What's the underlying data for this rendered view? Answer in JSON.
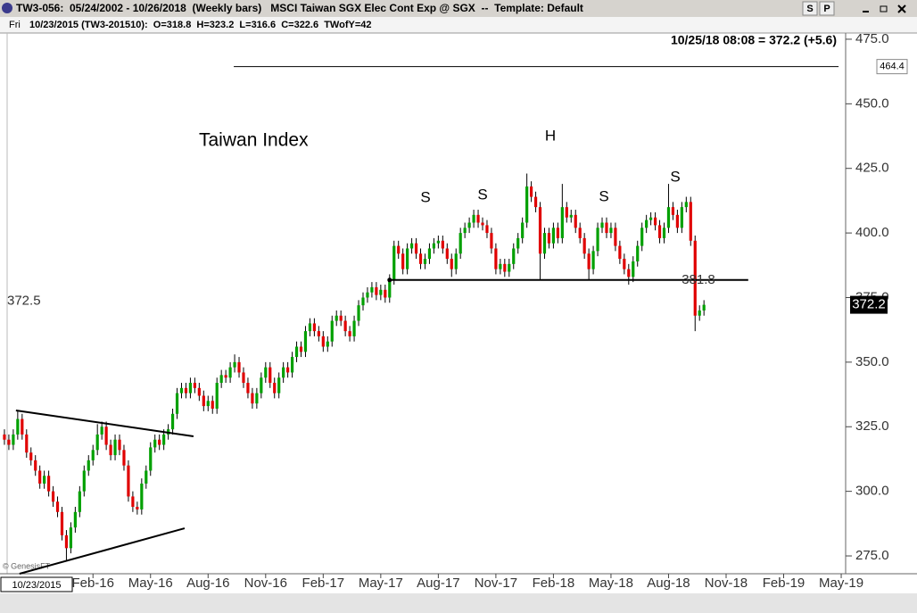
{
  "window": {
    "title": "TW3-056:  05/24/2002 - 10/26/2018  (Weekly bars)   MSCI Taiwan SGX Elec Cont Exp @ SGX  --  Template: Default",
    "buttons": [
      "S",
      "P"
    ],
    "day": "Fri",
    "info": "10/23/2015 (TW3-201510):  O=318.8  H=323.2  L=316.6  C=322.6  TWofY=42",
    "last_quote": "10/25/18 08:08 = 372.2 (+5.6)",
    "crosshair_date": "10/23/2015",
    "watermark": "© GenesisFT"
  },
  "chart_data": {
    "type": "candlestick",
    "annotations": [
      "Taiwan Index",
      "S",
      "S",
      "H",
      "S",
      "S"
    ],
    "up_color": "#00a000",
    "down_color": "#e00000",
    "wick_color": "#000000",
    "open": [
      322,
      320,
      318,
      322,
      328,
      322,
      315,
      312,
      308,
      303,
      306,
      300,
      296,
      292,
      283,
      278,
      286,
      292,
      300,
      308,
      312,
      316,
      322,
      325,
      318,
      314,
      320,
      316,
      310,
      298,
      294,
      293,
      303,
      308,
      317,
      320,
      318,
      322,
      324,
      330,
      338,
      340,
      338,
      342,
      340,
      337,
      333,
      335,
      332,
      342,
      345,
      344,
      348,
      350,
      346,
      342,
      338,
      334,
      338,
      344,
      348,
      342,
      338,
      344,
      348,
      346,
      352,
      356,
      354,
      362,
      365,
      362,
      360,
      356,
      358,
      366,
      368,
      366,
      362,
      360,
      366,
      372,
      375,
      377,
      379,
      376,
      378,
      375,
      382,
      395,
      392,
      386,
      394,
      396,
      392,
      388,
      390,
      394,
      396,
      397,
      394,
      390,
      386,
      392,
      400,
      402,
      404,
      407,
      404,
      403,
      400,
      394,
      386,
      388,
      385,
      388,
      394,
      398,
      404,
      418,
      414,
      410,
      392,
      400,
      396,
      402,
      398,
      410,
      406,
      407,
      402,
      398,
      392,
      386,
      393,
      402,
      404,
      400,
      402,
      395,
      390,
      386,
      383,
      389,
      395,
      402,
      405,
      406,
      403,
      398,
      402,
      410,
      407,
      402,
      410,
      412,
      397,
      368,
      370
    ],
    "high": [
      324,
      322,
      324,
      331,
      330,
      324,
      317,
      314,
      310,
      308,
      308,
      302,
      298,
      294,
      285,
      288,
      294,
      302,
      310,
      314,
      318,
      326,
      327,
      327,
      320,
      322,
      322,
      318,
      312,
      300,
      296,
      305,
      310,
      319,
      322,
      322,
      324,
      326,
      332,
      340,
      342,
      342,
      344,
      344,
      342,
      339,
      337,
      337,
      344,
      347,
      347,
      350,
      353,
      352,
      348,
      344,
      340,
      340,
      346,
      350,
      350,
      344,
      346,
      350,
      350,
      354,
      358,
      358,
      364,
      367,
      367,
      364,
      362,
      360,
      368,
      370,
      370,
      368,
      364,
      368,
      374,
      377,
      379,
      381,
      381,
      380,
      380,
      384,
      397,
      397,
      394,
      396,
      398,
      398,
      394,
      392,
      396,
      398,
      399,
      399,
      396,
      392,
      394,
      402,
      404,
      406,
      409,
      409,
      406,
      405,
      402,
      396,
      390,
      390,
      390,
      396,
      400,
      406,
      423,
      420,
      416,
      412,
      402,
      402,
      404,
      404,
      419,
      412,
      409,
      409,
      404,
      400,
      394,
      395,
      404,
      406,
      406,
      404,
      404,
      397,
      392,
      388,
      391,
      397,
      404,
      407,
      408,
      408,
      405,
      404,
      419,
      412,
      409,
      412,
      414,
      414,
      399,
      372,
      374
    ],
    "low": [
      318,
      316,
      316,
      320,
      320,
      313,
      310,
      306,
      301,
      301,
      298,
      294,
      290,
      281,
      273,
      276,
      284,
      290,
      298,
      306,
      310,
      314,
      320,
      316,
      312,
      312,
      314,
      308,
      296,
      292,
      291,
      291,
      301,
      306,
      315,
      316,
      316,
      320,
      322,
      328,
      336,
      336,
      336,
      338,
      335,
      331,
      331,
      330,
      330,
      340,
      342,
      342,
      346,
      344,
      340,
      336,
      332,
      332,
      336,
      342,
      340,
      336,
      336,
      342,
      344,
      344,
      350,
      352,
      352,
      360,
      360,
      358,
      354,
      354,
      356,
      364,
      364,
      360,
      358,
      358,
      364,
      370,
      373,
      375,
      374,
      374,
      373,
      373,
      380,
      390,
      384,
      384,
      392,
      390,
      386,
      386,
      388,
      392,
      394,
      392,
      388,
      383,
      384,
      390,
      398,
      400,
      402,
      402,
      401,
      398,
      392,
      384,
      384,
      383,
      383,
      386,
      392,
      396,
      402,
      412,
      408,
      382,
      390,
      394,
      394,
      396,
      396,
      404,
      404,
      400,
      396,
      390,
      382,
      384,
      391,
      400,
      398,
      398,
      393,
      388,
      384,
      380,
      381,
      387,
      393,
      400,
      403,
      401,
      396,
      396,
      400,
      405,
      400,
      400,
      408,
      395,
      362,
      366,
      368
    ],
    "close": [
      320,
      318,
      322,
      328,
      322,
      315,
      312,
      308,
      303,
      306,
      300,
      296,
      292,
      283,
      278,
      286,
      292,
      300,
      308,
      312,
      316,
      322,
      325,
      318,
      314,
      320,
      316,
      310,
      298,
      294,
      293,
      303,
      308,
      317,
      320,
      318,
      322,
      324,
      330,
      338,
      340,
      338,
      342,
      340,
      337,
      333,
      335,
      332,
      342,
      345,
      344,
      348,
      350,
      346,
      342,
      338,
      334,
      338,
      344,
      348,
      342,
      338,
      344,
      348,
      346,
      352,
      356,
      354,
      362,
      365,
      362,
      360,
      356,
      358,
      366,
      368,
      366,
      362,
      360,
      366,
      372,
      375,
      377,
      379,
      376,
      378,
      375,
      382,
      395,
      392,
      386,
      394,
      396,
      392,
      388,
      390,
      394,
      396,
      397,
      394,
      390,
      386,
      392,
      400,
      402,
      404,
      407,
      404,
      403,
      400,
      394,
      386,
      388,
      385,
      388,
      394,
      398,
      404,
      418,
      414,
      410,
      392,
      400,
      396,
      402,
      398,
      410,
      406,
      407,
      402,
      398,
      392,
      386,
      393,
      402,
      404,
      400,
      402,
      395,
      390,
      386,
      383,
      389,
      395,
      402,
      405,
      406,
      403,
      398,
      402,
      410,
      407,
      402,
      410,
      412,
      397,
      368,
      370,
      372.2
    ],
    "xlim": [
      -1,
      190
    ],
    "xticks": [
      {
        "value": 20,
        "label": "Feb-16"
      },
      {
        "value": 33,
        "label": "May-16"
      },
      {
        "value": 46,
        "label": "Aug-16"
      },
      {
        "value": 59,
        "label": "Nov-16"
      },
      {
        "value": 72,
        "label": "Feb-17"
      },
      {
        "value": 85,
        "label": "May-17"
      },
      {
        "value": 98,
        "label": "Aug-17"
      },
      {
        "value": 111,
        "label": "Nov-17"
      },
      {
        "value": 124,
        "label": "Feb-18"
      },
      {
        "value": 137,
        "label": "May-18"
      },
      {
        "value": 150,
        "label": "Aug-18"
      },
      {
        "value": 163,
        "label": "Nov-18"
      },
      {
        "value": 176,
        "label": "Feb-19"
      },
      {
        "value": 189,
        "label": "May-19"
      }
    ],
    "ylim": [
      268.1,
      477.4
    ],
    "yticks": [
      {
        "value": 275,
        "label": "275.0"
      },
      {
        "value": 300,
        "label": "300.0"
      },
      {
        "value": 325,
        "label": "325.0"
      },
      {
        "value": 350,
        "label": "350.0"
      },
      {
        "value": 375,
        "label": "375.0"
      },
      {
        "value": 400,
        "label": "400.0"
      },
      {
        "value": 425,
        "label": "425.0"
      },
      {
        "value": 450,
        "label": "450.0"
      },
      {
        "value": 475,
        "label": "475.0"
      }
    ],
    "trendlines": [
      {
        "x": [
          2.6,
          42.7
        ],
        "y": [
          331.3,
          321.3
        ]
      },
      {
        "x": [
          3.4,
          40.7
        ],
        "y": [
          268.1,
          285.7
        ]
      }
    ],
    "levels": [
      {
        "value": 381.8,
        "x": [
          87,
          168
        ]
      },
      {
        "value": 464.4,
        "x": [
          51.8,
          188.4
        ]
      }
    ],
    "crosshair_price": 372.5
  }
}
